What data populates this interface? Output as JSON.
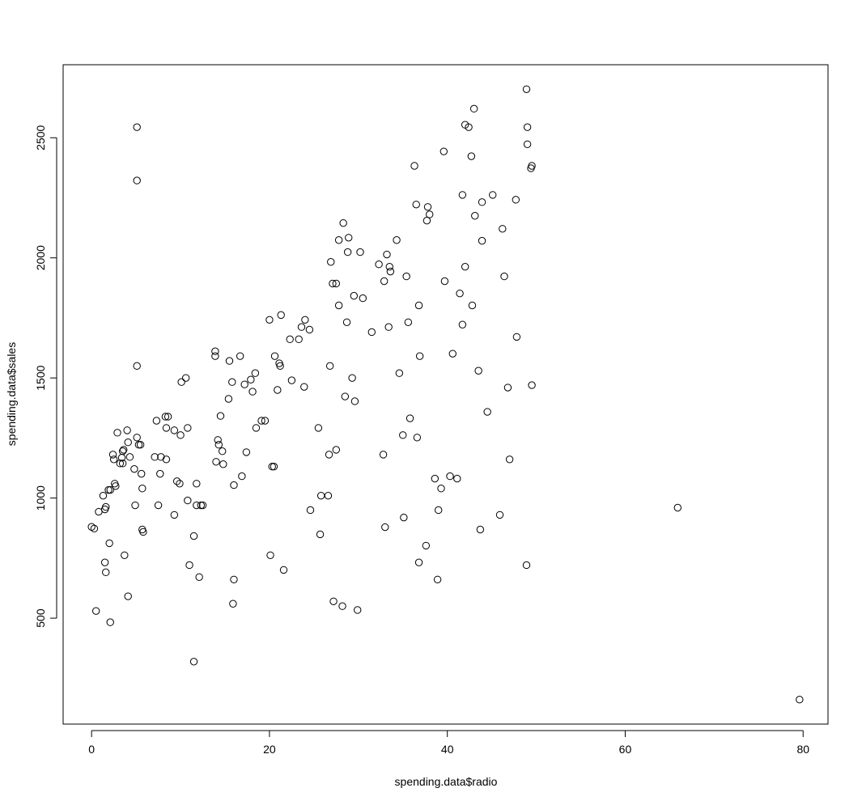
{
  "chart_data": {
    "type": "scatter",
    "title": "",
    "xlabel": "spending.data$radio",
    "ylabel": "spending.data$sales",
    "xlim": [
      -3.2,
      82.8
    ],
    "ylim": [
      59,
      2804
    ],
    "xticks": [
      0,
      20,
      40,
      60,
      80
    ],
    "yticks": [
      500,
      1000,
      1500,
      2000,
      2500
    ],
    "grid": false,
    "marker": "open-circle",
    "color": "#000000",
    "points": [
      [
        0.0,
        880
      ],
      [
        0.3,
        873
      ],
      [
        0.5,
        530
      ],
      [
        0.8,
        943
      ],
      [
        1.3,
        1010
      ],
      [
        1.5,
        953
      ],
      [
        1.6,
        963
      ],
      [
        1.5,
        732
      ],
      [
        1.6,
        691
      ],
      [
        1.9,
        1034
      ],
      [
        2.1,
        1034
      ],
      [
        2.0,
        812
      ],
      [
        2.1,
        483
      ],
      [
        2.4,
        1181
      ],
      [
        2.5,
        1161
      ],
      [
        2.6,
        1060
      ],
      [
        2.7,
        1050
      ],
      [
        2.9,
        1272
      ],
      [
        3.2,
        1144
      ],
      [
        3.4,
        1168
      ],
      [
        3.5,
        1195
      ],
      [
        3.6,
        1201
      ],
      [
        3.5,
        1144
      ],
      [
        3.7,
        762
      ],
      [
        4.0,
        1282
      ],
      [
        4.1,
        1232
      ],
      [
        4.3,
        1171
      ],
      [
        4.1,
        591
      ],
      [
        4.8,
        1121
      ],
      [
        4.9,
        970
      ],
      [
        5.1,
        1252
      ],
      [
        5.1,
        2544
      ],
      [
        5.1,
        2322
      ],
      [
        5.1,
        1550
      ],
      [
        5.3,
        1222
      ],
      [
        5.5,
        1222
      ],
      [
        5.6,
        1101
      ],
      [
        5.7,
        1040
      ],
      [
        5.7,
        869
      ],
      [
        5.8,
        859
      ],
      [
        7.1,
        1171
      ],
      [
        7.3,
        1322
      ],
      [
        7.5,
        970
      ],
      [
        7.7,
        1101
      ],
      [
        7.8,
        1171
      ],
      [
        8.3,
        1339
      ],
      [
        8.4,
        1292
      ],
      [
        8.4,
        1161
      ],
      [
        8.6,
        1339
      ],
      [
        9.3,
        930
      ],
      [
        9.3,
        1282
      ],
      [
        9.6,
        1070
      ],
      [
        9.9,
        1060
      ],
      [
        10.0,
        1262
      ],
      [
        10.1,
        1483
      ],
      [
        10.6,
        1500
      ],
      [
        10.8,
        1292
      ],
      [
        10.8,
        990
      ],
      [
        11.0,
        721
      ],
      [
        11.5,
        842
      ],
      [
        11.5,
        319
      ],
      [
        11.8,
        970
      ],
      [
        11.8,
        1060
      ],
      [
        12.1,
        671
      ],
      [
        12.3,
        970
      ],
      [
        12.5,
        970
      ],
      [
        13.9,
        1611
      ],
      [
        13.9,
        1591
      ],
      [
        14.0,
        1151
      ],
      [
        14.2,
        1242
      ],
      [
        14.3,
        1222
      ],
      [
        14.5,
        1342
      ],
      [
        14.7,
        1195
      ],
      [
        14.8,
        1141
      ],
      [
        15.4,
        1413
      ],
      [
        15.5,
        1571
      ],
      [
        15.8,
        1483
      ],
      [
        16.0,
        1054
      ],
      [
        16.0,
        661
      ],
      [
        15.9,
        560
      ],
      [
        16.7,
        1591
      ],
      [
        16.9,
        1091
      ],
      [
        17.2,
        1473
      ],
      [
        17.4,
        1191
      ],
      [
        17.9,
        1493
      ],
      [
        18.1,
        1443
      ],
      [
        18.4,
        1520
      ],
      [
        18.5,
        1292
      ],
      [
        19.1,
        1322
      ],
      [
        19.5,
        1322
      ],
      [
        20.0,
        1742
      ],
      [
        20.1,
        762
      ],
      [
        20.3,
        1131
      ],
      [
        20.5,
        1131
      ],
      [
        20.6,
        1591
      ],
      [
        20.9,
        1450
      ],
      [
        21.1,
        1561
      ],
      [
        21.2,
        1550
      ],
      [
        21.3,
        1762
      ],
      [
        21.6,
        701
      ],
      [
        22.3,
        1661
      ],
      [
        22.5,
        1490
      ],
      [
        23.3,
        1661
      ],
      [
        23.6,
        1712
      ],
      [
        23.9,
        1463
      ],
      [
        24.0,
        1742
      ],
      [
        24.5,
        1701
      ],
      [
        24.6,
        950
      ],
      [
        25.5,
        1292
      ],
      [
        25.7,
        849
      ],
      [
        25.8,
        1010
      ],
      [
        26.6,
        1010
      ],
      [
        26.7,
        1181
      ],
      [
        26.8,
        1550
      ],
      [
        26.9,
        1983
      ],
      [
        27.1,
        1893
      ],
      [
        27.2,
        570
      ],
      [
        27.5,
        1893
      ],
      [
        27.5,
        1201
      ],
      [
        27.8,
        1802
      ],
      [
        27.8,
        2074
      ],
      [
        28.2,
        550
      ],
      [
        28.3,
        2145
      ],
      [
        28.5,
        1423
      ],
      [
        28.7,
        1732
      ],
      [
        28.8,
        2024
      ],
      [
        28.9,
        2084
      ],
      [
        29.3,
        1500
      ],
      [
        29.5,
        1842
      ],
      [
        29.6,
        1403
      ],
      [
        29.9,
        534
      ],
      [
        30.2,
        2024
      ],
      [
        30.5,
        1832
      ],
      [
        31.5,
        1691
      ],
      [
        32.3,
        1973
      ],
      [
        32.8,
        1181
      ],
      [
        32.9,
        1903
      ],
      [
        33.0,
        879
      ],
      [
        33.2,
        2014
      ],
      [
        33.4,
        1712
      ],
      [
        33.5,
        1963
      ],
      [
        33.6,
        1943
      ],
      [
        34.3,
        2074
      ],
      [
        34.6,
        1520
      ],
      [
        35.0,
        1262
      ],
      [
        35.1,
        919
      ],
      [
        35.4,
        1923
      ],
      [
        35.6,
        1732
      ],
      [
        35.8,
        1332
      ],
      [
        36.3,
        2383
      ],
      [
        36.5,
        2222
      ],
      [
        36.6,
        1252
      ],
      [
        36.8,
        1802
      ],
      [
        36.9,
        1591
      ],
      [
        36.8,
        732
      ],
      [
        37.6,
        802
      ],
      [
        37.7,
        2155
      ],
      [
        37.8,
        2212
      ],
      [
        38.0,
        2181
      ],
      [
        38.6,
        1081
      ],
      [
        38.9,
        661
      ],
      [
        39.0,
        950
      ],
      [
        39.3,
        1040
      ],
      [
        39.6,
        2443
      ],
      [
        39.7,
        1903
      ],
      [
        40.3,
        1091
      ],
      [
        40.6,
        1601
      ],
      [
        41.1,
        1081
      ],
      [
        41.4,
        1852
      ],
      [
        41.7,
        1722
      ],
      [
        41.7,
        2262
      ],
      [
        42.0,
        1963
      ],
      [
        42.0,
        2554
      ],
      [
        42.4,
        2544
      ],
      [
        42.7,
        2423
      ],
      [
        42.8,
        1802
      ],
      [
        43.0,
        2621
      ],
      [
        43.1,
        2175
      ],
      [
        43.5,
        1530
      ],
      [
        43.7,
        869
      ],
      [
        43.9,
        2232
      ],
      [
        43.9,
        2071
      ],
      [
        44.5,
        1359
      ],
      [
        45.1,
        2262
      ],
      [
        45.9,
        930
      ],
      [
        46.2,
        2121
      ],
      [
        46.4,
        1923
      ],
      [
        46.8,
        1460
      ],
      [
        47.0,
        1161
      ],
      [
        47.7,
        2242
      ],
      [
        47.8,
        1671
      ],
      [
        48.9,
        2702
      ],
      [
        48.9,
        721
      ],
      [
        49.0,
        2544
      ],
      [
        49.0,
        2473
      ],
      [
        49.4,
        2373
      ],
      [
        49.5,
        2383
      ],
      [
        49.5,
        1470
      ],
      [
        65.9,
        960
      ],
      [
        79.6,
        161
      ]
    ]
  }
}
